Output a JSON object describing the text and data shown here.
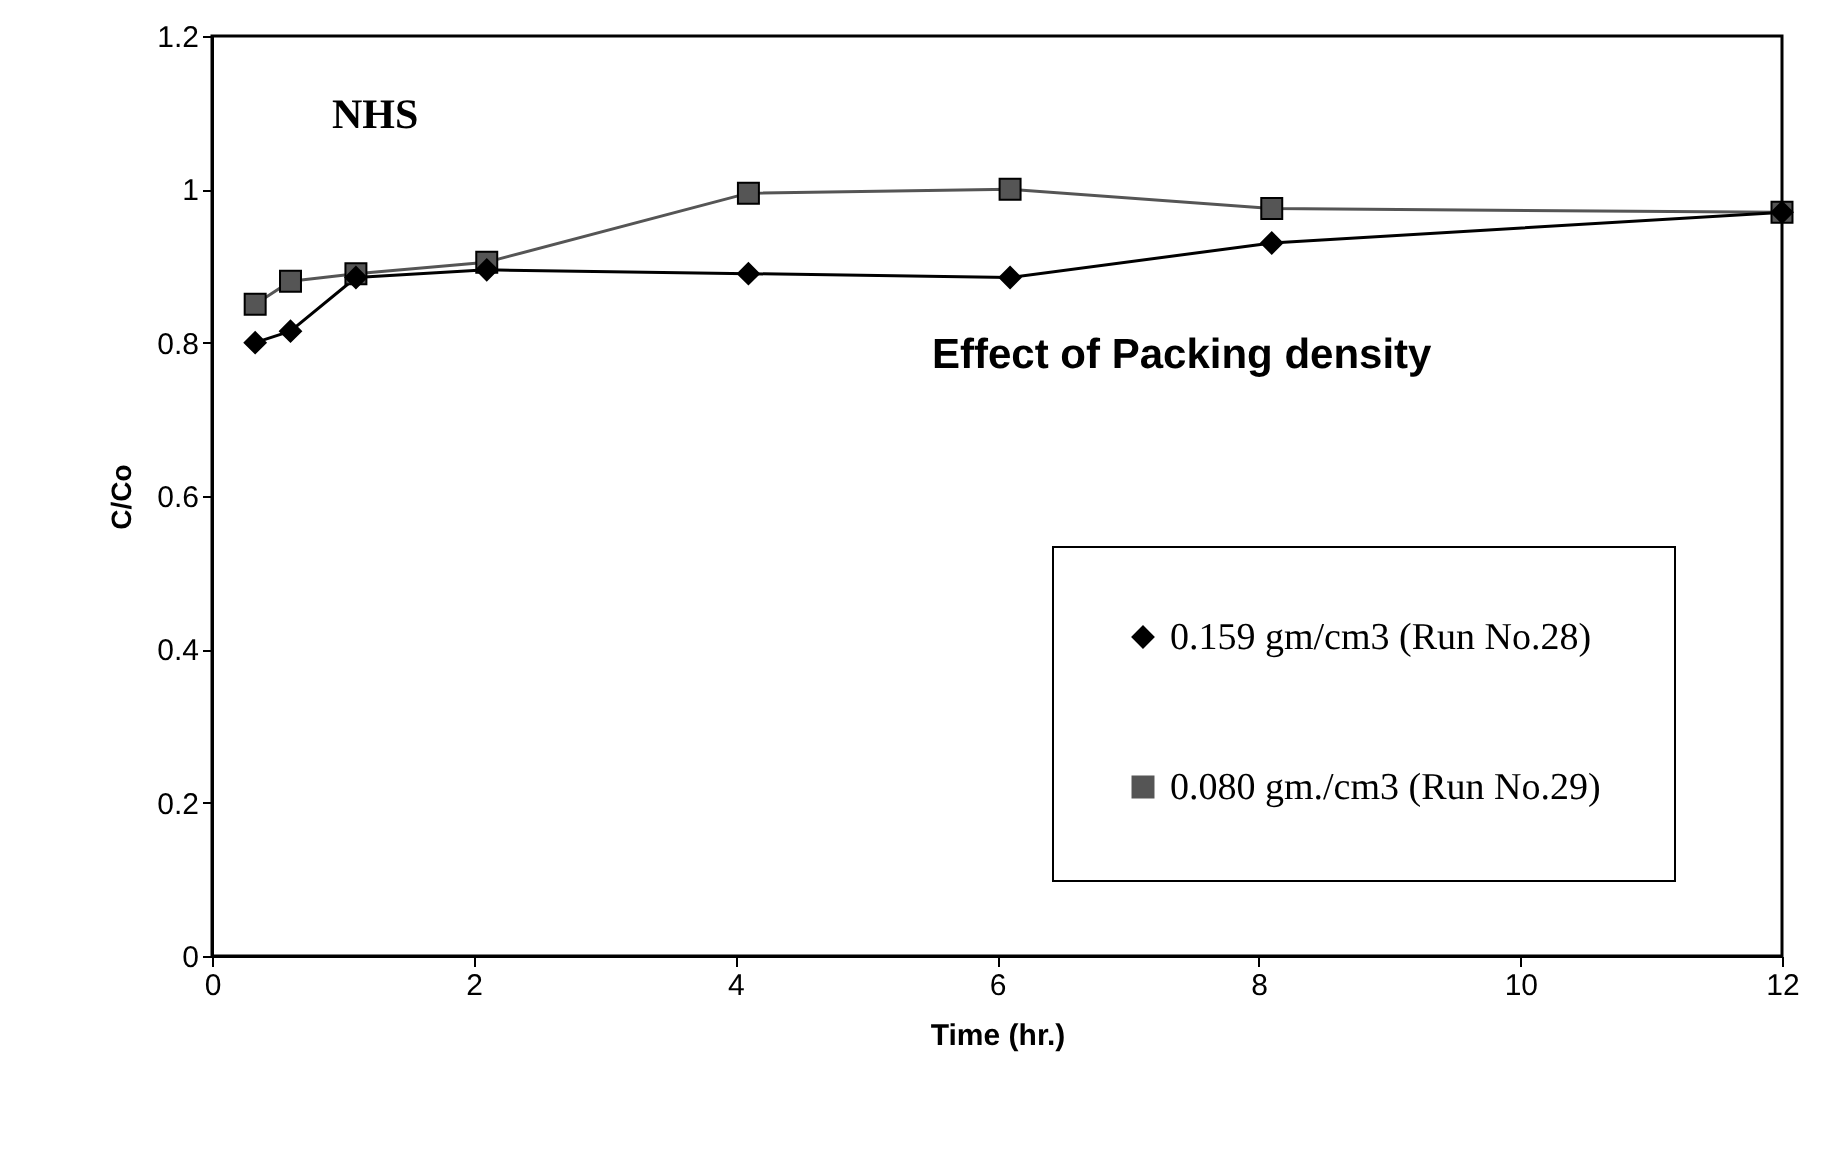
{
  "chart_data": {
    "type": "line",
    "xlabel": "Time (hr.)",
    "ylabel": "C/Co",
    "annotations": [
      "NHS",
      "Effect of Packing density"
    ],
    "x": [
      0.33,
      0.6,
      1.1,
      2.1,
      4.1,
      6.1,
      8.1,
      12
    ],
    "series": [
      {
        "name": "0.159 gm/cm3 (Run No.28)",
        "color": "#000000",
        "marker": "diamond",
        "values": [
          0.8,
          0.815,
          0.885,
          0.895,
          0.89,
          0.885,
          0.93,
          0.97
        ]
      },
      {
        "name": "0.080 gm./cm3 (Run No.29)",
        "color": "#555555",
        "marker": "square",
        "values": [
          0.85,
          0.88,
          0.89,
          0.905,
          0.995,
          1.0,
          0.975,
          0.97
        ]
      }
    ],
    "xlim": [
      0,
      12
    ],
    "xticks": [
      0,
      2,
      4,
      6,
      8,
      10,
      12
    ],
    "ylim": [
      0,
      1.2
    ],
    "yticks": [
      0,
      0.2,
      0.4,
      0.6,
      0.8,
      1,
      1.2
    ],
    "grid": false,
    "legend": "bottom right"
  }
}
